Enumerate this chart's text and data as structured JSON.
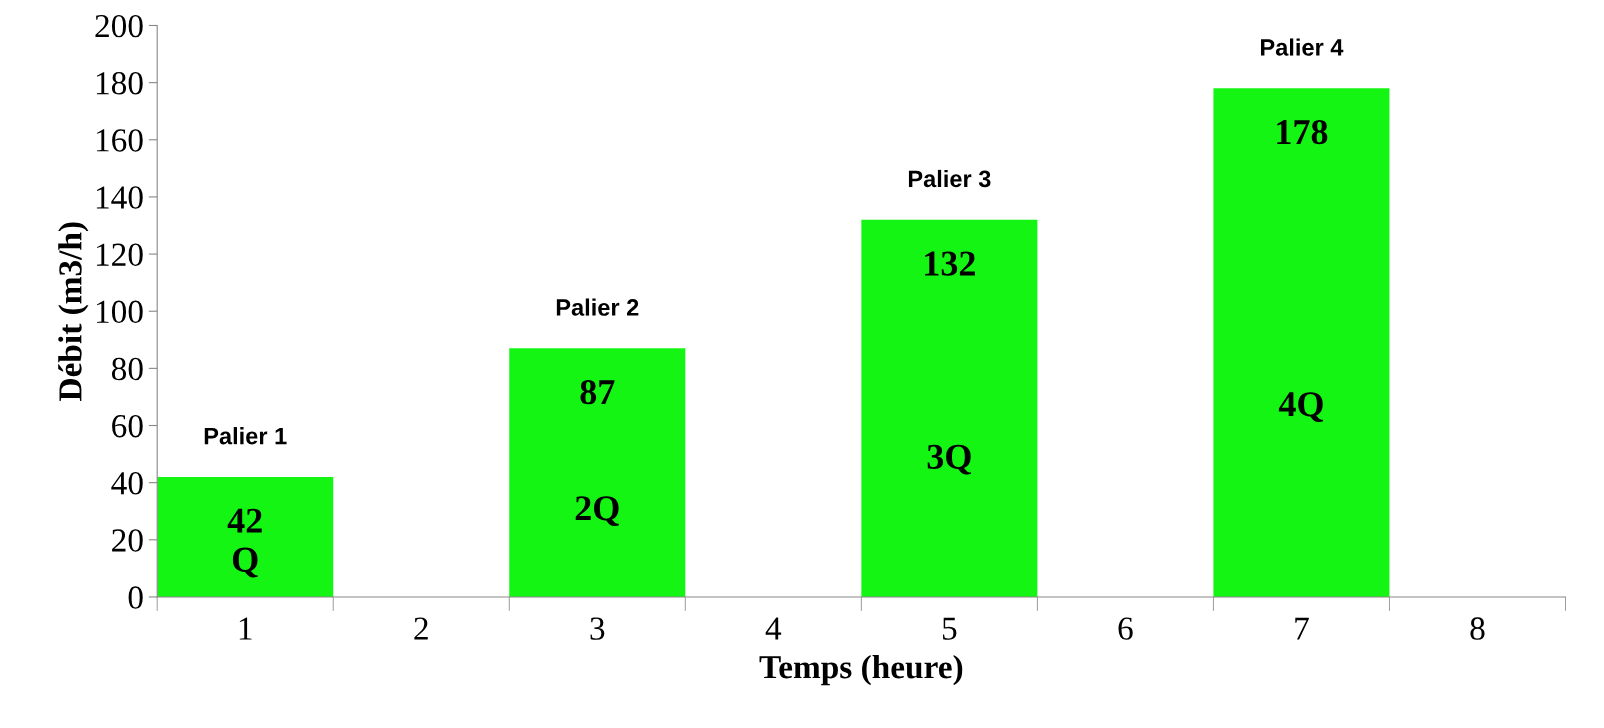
{
  "chart_data": {
    "type": "bar",
    "xlabel": "Temps (heure)",
    "ylabel": "Débit (m3/h)",
    "categories": [
      "1",
      "2",
      "3",
      "4",
      "5",
      "6",
      "7",
      "8"
    ],
    "values": [
      42,
      null,
      87,
      null,
      132,
      null,
      178,
      null
    ],
    "color": "#14f514",
    "ylim": [
      0,
      200
    ],
    "yticks": [
      0,
      20,
      40,
      60,
      80,
      100,
      120,
      140,
      160,
      180,
      200
    ],
    "grid": false,
    "data_labels": true,
    "annotations": [
      "Palier 1",
      "Q",
      "Palier 2",
      "2Q",
      "Palier 3",
      "3Q",
      "Palier 4",
      "4Q"
    ]
  }
}
